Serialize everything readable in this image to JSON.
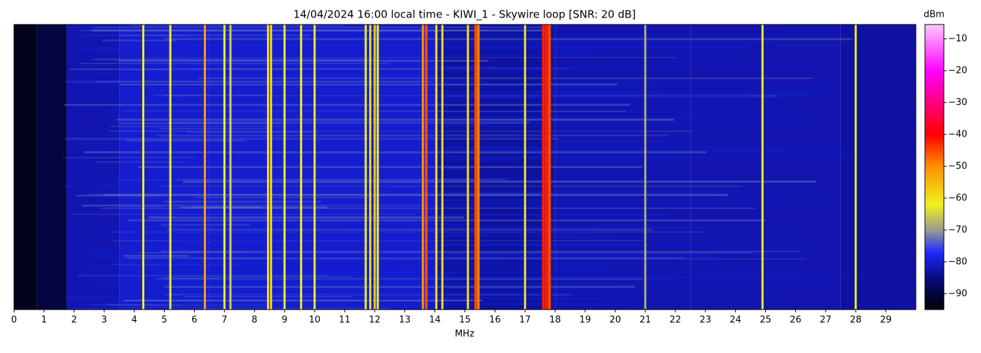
{
  "chart_data": {
    "type": "heatmap",
    "title": "14/04/2024 16:00 local time - KIWI_1 - Skywire loop [SNR: 20 dB]",
    "xlabel": "MHz",
    "colorbar_label": "dBm",
    "xlim": [
      0,
      30
    ],
    "xticks": [
      0,
      1,
      2,
      3,
      4,
      5,
      6,
      7,
      8,
      9,
      10,
      11,
      12,
      13,
      14,
      15,
      16,
      17,
      18,
      19,
      20,
      21,
      22,
      23,
      24,
      25,
      26,
      27,
      28,
      29
    ],
    "zlim": [
      -95,
      -5.5
    ],
    "zticks": [
      {
        "value": -10,
        "label": "−10"
      },
      {
        "value": -20,
        "label": "−20"
      },
      {
        "value": -30,
        "label": "−30"
      },
      {
        "value": -40,
        "label": "−40"
      },
      {
        "value": -50,
        "label": "−50"
      },
      {
        "value": -60,
        "label": "−60"
      },
      {
        "value": -70,
        "label": "−70"
      },
      {
        "value": -80,
        "label": "−80"
      },
      {
        "value": -90,
        "label": "−90"
      }
    ],
    "colormap": [
      {
        "value": -95,
        "color": "#000000"
      },
      {
        "value": -85,
        "color": "#0a0a80"
      },
      {
        "value": -77,
        "color": "#1e28ff"
      },
      {
        "value": -70,
        "color": "#9a9a90"
      },
      {
        "value": -62,
        "color": "#f0f020"
      },
      {
        "value": -50,
        "color": "#ff9000"
      },
      {
        "value": -40,
        "color": "#ff0000"
      },
      {
        "value": -20,
        "color": "#ff00ff"
      },
      {
        "value": -5.5,
        "color": "#ffc8ff"
      }
    ],
    "floor": {
      "x": [
        0,
        1.5,
        2,
        5,
        8,
        12,
        16,
        20,
        25,
        30
      ],
      "values": [
        -93,
        -90,
        -82,
        -80,
        -80,
        -80,
        -83,
        -82,
        -82,
        -83
      ]
    },
    "signals": {
      "x": [
        4.3,
        5.2,
        6.35,
        7.0,
        7.2,
        8.45,
        8.55,
        9.0,
        9.55,
        10.0,
        11.7,
        11.85,
        12.0,
        12.1,
        13.6,
        13.7,
        14.05,
        14.25,
        15.1,
        15.35,
        15.45,
        17.0,
        17.6,
        17.7,
        17.8,
        21.0,
        24.9,
        28.0
      ],
      "values": [
        -62,
        -62,
        -52,
        -62,
        -65,
        -60,
        -60,
        -62,
        -62,
        -62,
        -62,
        -60,
        -58,
        -62,
        -50,
        -45,
        -60,
        -60,
        -60,
        -45,
        -50,
        -63,
        -42,
        -42,
        -45,
        -68,
        -62,
        -62
      ]
    }
  }
}
